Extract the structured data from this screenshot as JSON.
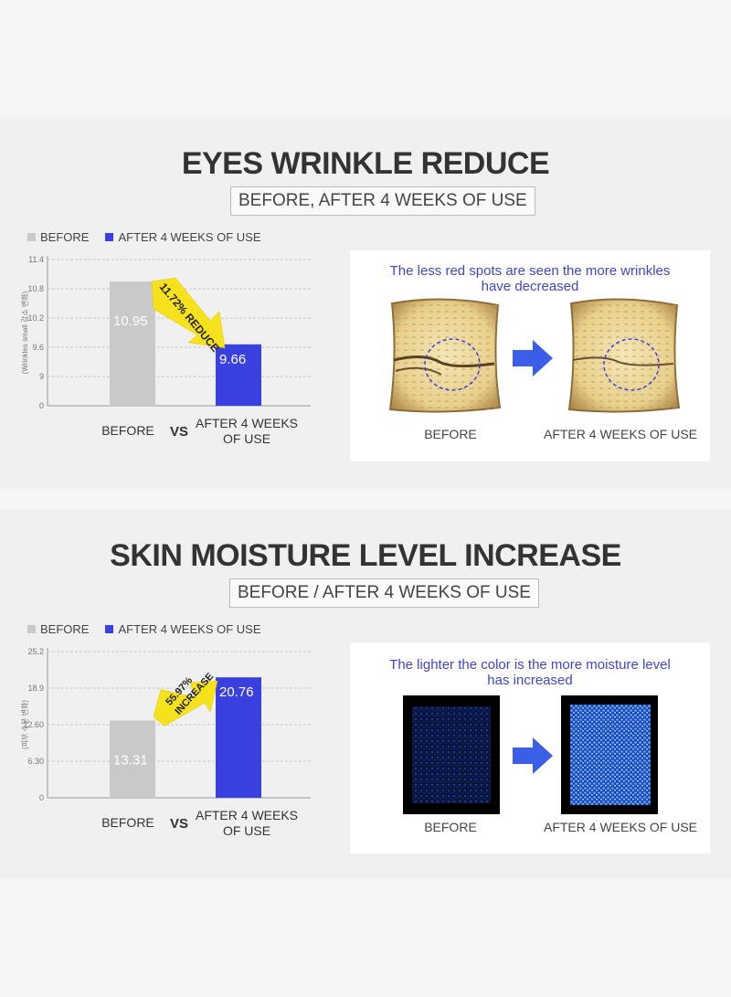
{
  "sections": [
    {
      "title": "EYES WRINKLE REDUCE",
      "subtitle": "BEFORE, AFTER 4 WEEKS OF USE",
      "legend": [
        "BEFORE",
        "AFTER 4 WEEKS OF USE"
      ],
      "panel_caption_line1": "The less red spots are seen the more wrinkles",
      "panel_caption_line2": "have decreased",
      "image_labels": [
        "BEFORE",
        "AFTER 4 WEEKS OF USE"
      ],
      "vs_label": "VS",
      "cat_before": "BEFORE",
      "cat_after_line1": "AFTER 4 WEEKS",
      "cat_after_line2": "OF USE",
      "badge_text": "11.72% REDUCE"
    },
    {
      "title": "SKIN MOISTURE LEVEL INCREASE",
      "subtitle": "BEFORE / AFTER 4 WEEKS OF USE",
      "legend": [
        "BEFORE",
        "AFTER 4 WEEKS OF USE"
      ],
      "panel_caption_line1": "The lighter the color is the more moisture level",
      "panel_caption_line2": "has increased",
      "image_labels": [
        "BEFORE",
        "AFTER 4 WEEKS OF USE"
      ],
      "vs_label": "VS",
      "cat_before": "BEFORE",
      "cat_after_line1": "AFTER 4 WEEKS",
      "cat_after_line2": "OF USE",
      "badge_text_line1": "55.97%",
      "badge_text_line2": "INCREASE"
    }
  ],
  "colors": {
    "before": "#c9c9c9",
    "after": "#3a3fe0",
    "badge": "#f5e21c",
    "caption": "#4046c8"
  },
  "chart_data": [
    {
      "type": "bar",
      "categories": [
        "BEFORE",
        "AFTER 4 WEEKS OF USE"
      ],
      "values": [
        10.95,
        9.66
      ],
      "ylabel": "(Wrinkles small 감소 변화)",
      "yticks": [
        "0",
        "9",
        "9.6",
        "10.2",
        "10.8",
        "11.4"
      ],
      "annotation": "11.72% REDUCE",
      "grid": true,
      "legend": "top-left"
    },
    {
      "type": "bar",
      "categories": [
        "BEFORE",
        "AFTER 4 WEEKS OF USE"
      ],
      "values": [
        13.31,
        20.76
      ],
      "ylabel": "(피부 수분 변화)",
      "yticks": [
        "0",
        "6.30",
        "12.60",
        "18.9",
        "25.2"
      ],
      "annotation": "55.97% INCREASE",
      "grid": true,
      "legend": "top-left"
    }
  ]
}
